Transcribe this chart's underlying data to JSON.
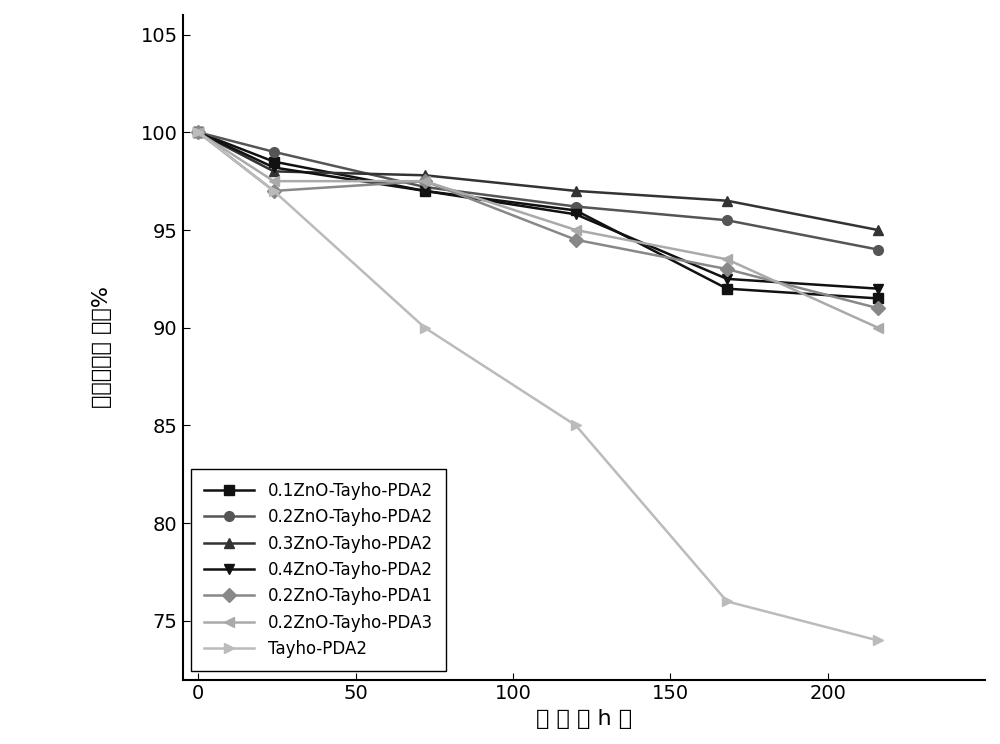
{
  "x_points": [
    0,
    24,
    72,
    120,
    168,
    216
  ],
  "series": [
    {
      "label": "0.1ZnO-Tayho-PDA2",
      "color": "#111111",
      "marker": "s",
      "markersize": 7,
      "linewidth": 1.8,
      "y": [
        100,
        98.5,
        97.0,
        96.0,
        92.0,
        91.5
      ]
    },
    {
      "label": "0.2ZnO-Tayho-PDA2",
      "color": "#555555",
      "marker": "o",
      "markersize": 7,
      "linewidth": 1.8,
      "y": [
        100,
        99.0,
        97.2,
        96.2,
        95.5,
        94.0
      ]
    },
    {
      "label": "0.3ZnO-Tayho-PDA2",
      "color": "#333333",
      "marker": "^",
      "markersize": 7,
      "linewidth": 1.8,
      "y": [
        100,
        98.0,
        97.8,
        97.0,
        96.5,
        95.0
      ]
    },
    {
      "label": "0.4ZnO-Tayho-PDA2",
      "color": "#111111",
      "marker": "v",
      "markersize": 7,
      "linewidth": 1.8,
      "y": [
        100,
        98.2,
        97.0,
        95.8,
        92.5,
        92.0
      ]
    },
    {
      "label": "0.2ZnO-Tayho-PDA1",
      "color": "#888888",
      "marker": "D",
      "markersize": 7,
      "linewidth": 1.8,
      "y": [
        100,
        97.0,
        97.5,
        94.5,
        93.0,
        91.0
      ]
    },
    {
      "label": "0.2ZnO-Tayho-PDA3",
      "color": "#aaaaaa",
      "marker": "<",
      "markersize": 7,
      "linewidth": 1.8,
      "y": [
        100,
        97.5,
        97.5,
        95.0,
        93.5,
        90.0
      ]
    },
    {
      "label": "Tayho-PDA2",
      "color": "#bbbbbb",
      "marker": ">",
      "markersize": 7,
      "linewidth": 1.8,
      "y": [
        100,
        97.0,
        90.0,
        85.0,
        76.0,
        74.0
      ]
    }
  ],
  "xlabel": "时 间 （ h ）",
  "ylabel_chars": [
    "拉",
    "伸",
    "强",
    "度",
    "保",
    " ",
    "持",
    "率",
    "%"
  ],
  "xlim": [
    -5,
    250
  ],
  "ylim": [
    72,
    106
  ],
  "xticks": [
    0,
    50,
    100,
    150,
    200
  ],
  "yticks": [
    75,
    80,
    85,
    90,
    95,
    100,
    105
  ],
  "legend_loc": "lower left",
  "background_color": "#ffffff",
  "figsize": [
    10.0,
    7.44
  ],
  "dpi": 100,
  "font_size_axis": 16,
  "font_size_legend": 12,
  "font_size_tick": 14
}
